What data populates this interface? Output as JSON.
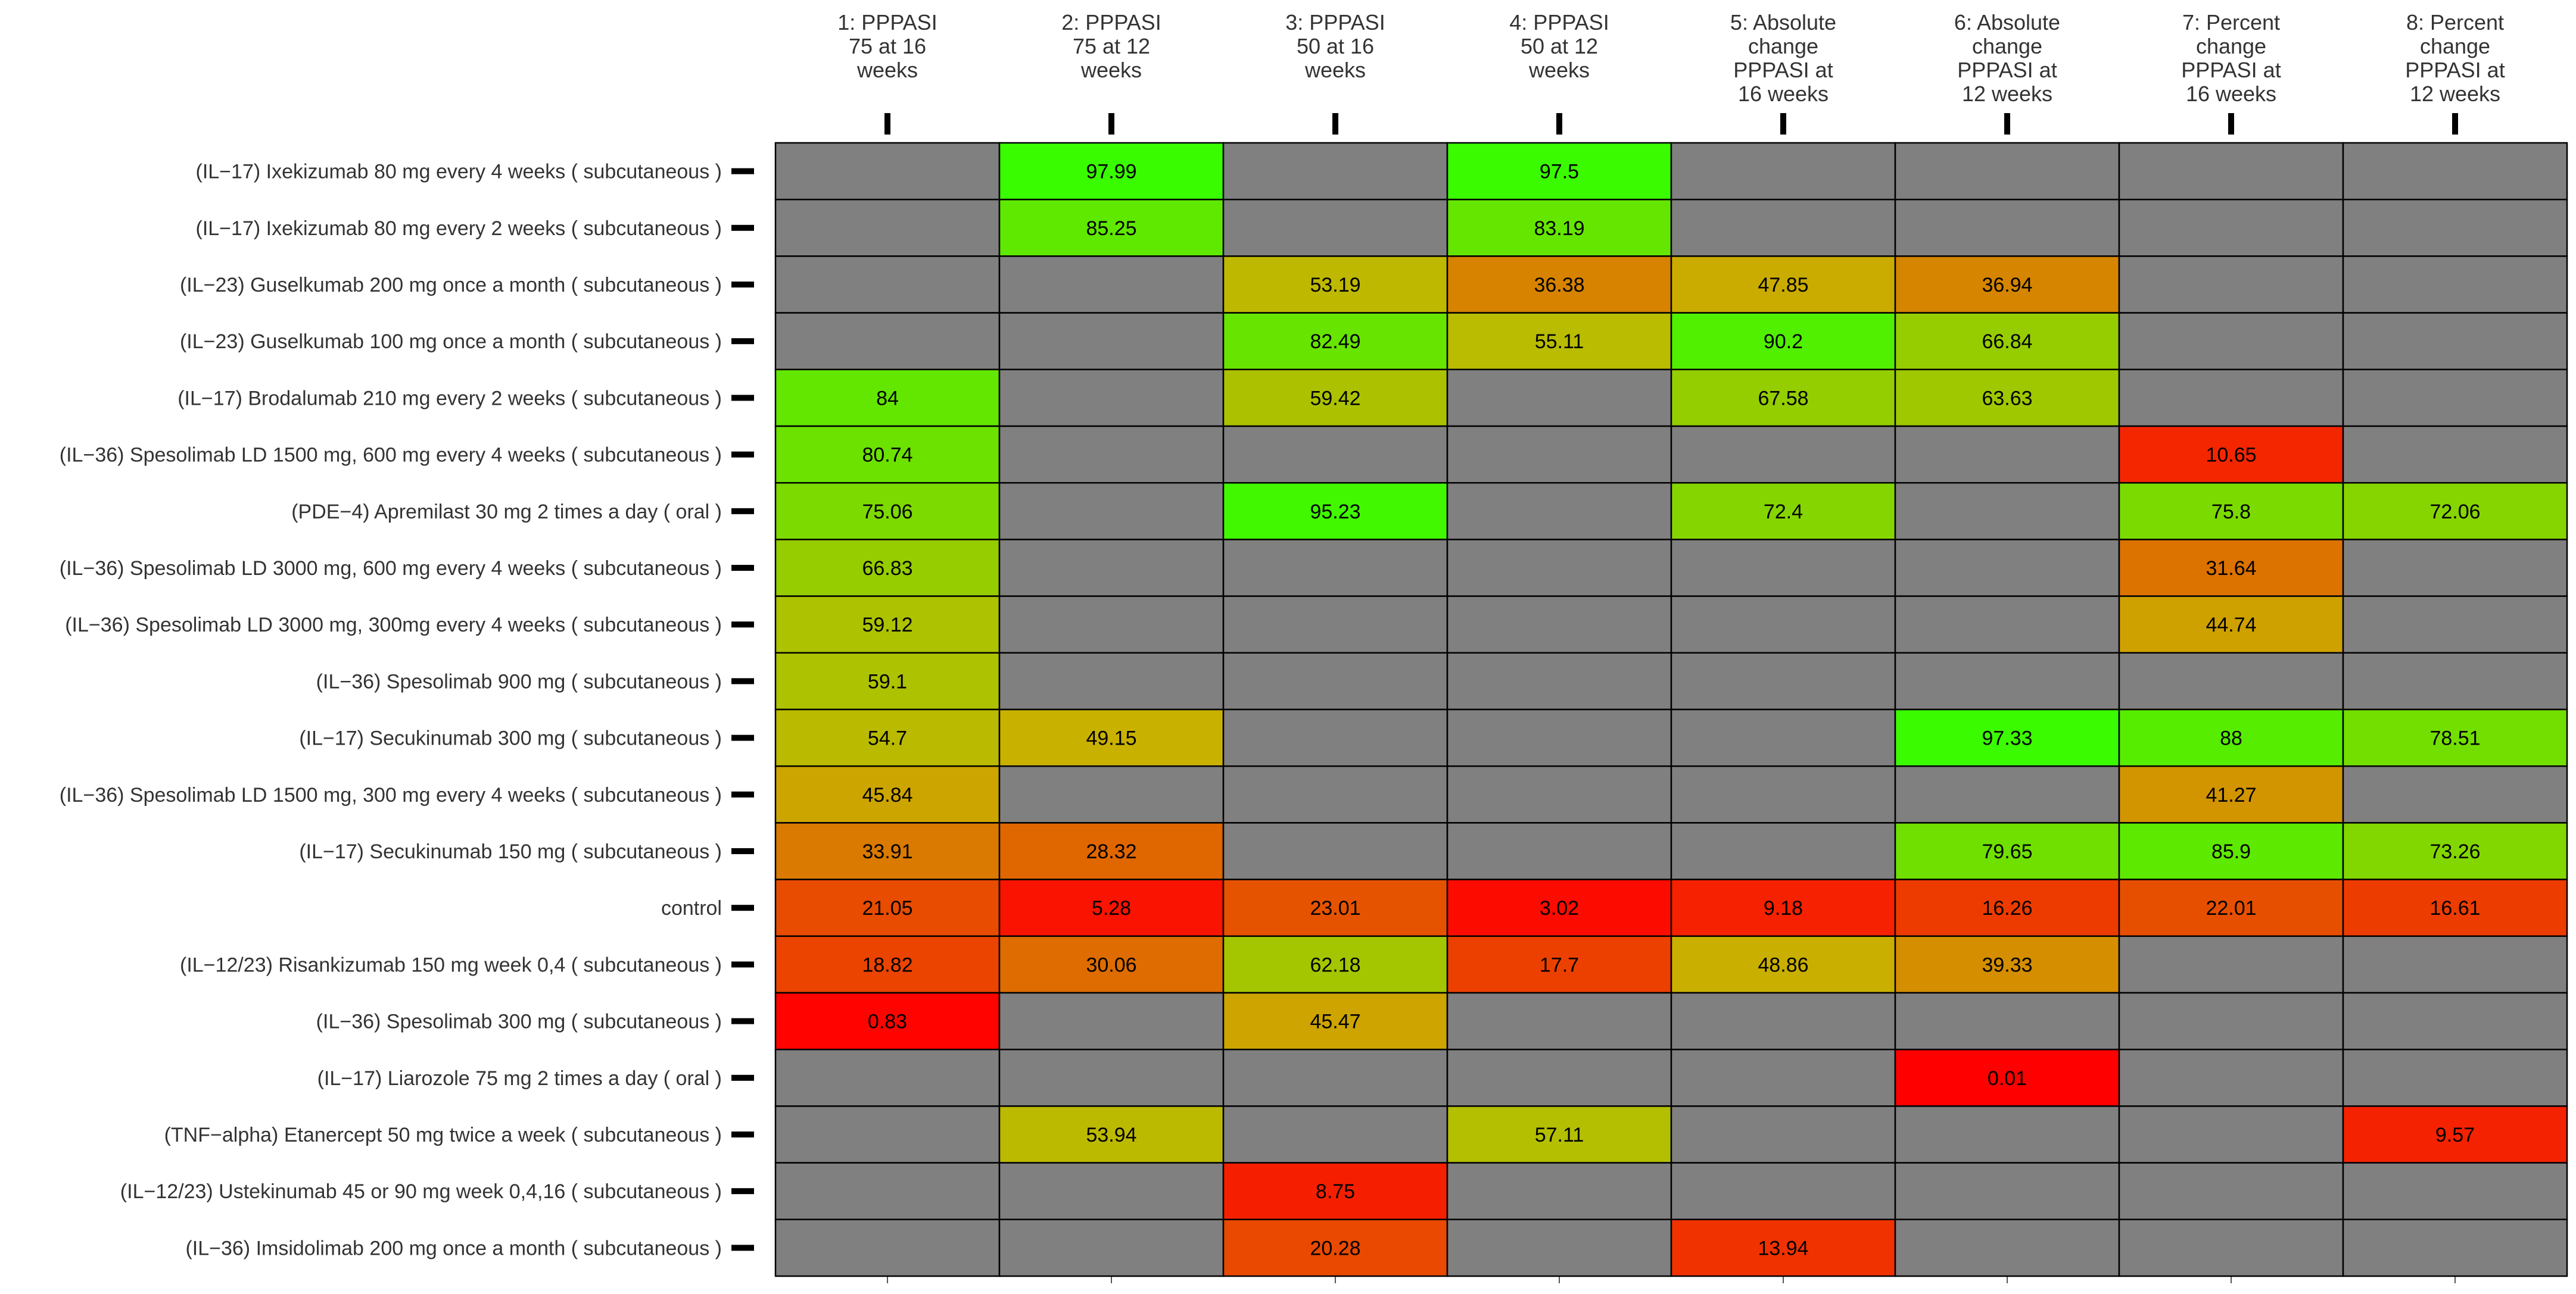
{
  "chart_data": {
    "type": "heatmap",
    "title": "",
    "xlabel": "",
    "ylabel": "",
    "columns": [
      [
        "1: PPPASI",
        "75 at 16",
        "weeks"
      ],
      [
        "2: PPPASI",
        "75 at 12",
        "weeks"
      ],
      [
        "3: PPPASI",
        "50 at 16",
        "weeks"
      ],
      [
        "4: PPPASI",
        "50 at 12",
        "weeks"
      ],
      [
        "5: Absolute",
        "change",
        "PPPASI at",
        "16 weeks"
      ],
      [
        "6: Absolute",
        "change",
        "PPPASI at",
        "12 weeks"
      ],
      [
        "7: Percent",
        "change",
        "PPPASI at",
        "16 weeks"
      ],
      [
        "8: Percent",
        "change",
        "PPPASI at",
        "12 weeks"
      ]
    ],
    "rows": [
      "(IL−17) Ixekizumab 80 mg every 4 weeks ( subcutaneous )",
      "(IL−17) Ixekizumab 80 mg every 2 weeks ( subcutaneous )",
      "(IL−23) Guselkumab 200 mg once a month ( subcutaneous )",
      "(IL−23) Guselkumab 100 mg once a month ( subcutaneous )",
      "(IL−17) Brodalumab 210 mg every 2 weeks ( subcutaneous )",
      "(IL−36) Spesolimab LD 1500 mg, 600 mg every 4 weeks ( subcutaneous )",
      "(PDE−4) Apremilast 30 mg 2 times a day ( oral )",
      "(IL−36) Spesolimab LD 3000 mg, 600 mg every 4 weeks ( subcutaneous )",
      "(IL−36) Spesolimab LD 3000 mg, 300mg every 4 weeks ( subcutaneous )",
      "(IL−36) Spesolimab 900 mg ( subcutaneous )",
      "(IL−17) Secukinumab 300 mg ( subcutaneous )",
      "(IL−36) Spesolimab LD 1500 mg, 300 mg every 4 weeks ( subcutaneous )",
      "(IL−17) Secukinumab 150 mg ( subcutaneous )",
      "control",
      "(IL−12/23) Risankizumab 150 mg week 0,4 ( subcutaneous )",
      "(IL−36) Spesolimab 300 mg ( subcutaneous )",
      "(IL−17) Liarozole 75 mg 2 times a day ( oral )",
      "(TNF−alpha) Etanercept 50 mg twice a week ( subcutaneous )",
      "(IL−12/23) Ustekinumab 45 or 90 mg week 0,4,16 ( subcutaneous )",
      "(IL−36) Imsidolimab 200 mg once a month ( subcutaneous )"
    ],
    "values": [
      [
        null,
        "97.99",
        null,
        "97.5",
        null,
        null,
        null,
        null
      ],
      [
        null,
        "85.25",
        null,
        "83.19",
        null,
        null,
        null,
        null
      ],
      [
        null,
        null,
        "53.19",
        "36.38",
        "47.85",
        "36.94",
        null,
        null
      ],
      [
        null,
        null,
        "82.49",
        "55.11",
        "90.2",
        "66.84",
        null,
        null
      ],
      [
        "84",
        null,
        "59.42",
        null,
        "67.58",
        "63.63",
        null,
        null
      ],
      [
        "80.74",
        null,
        null,
        null,
        null,
        null,
        "10.65",
        null
      ],
      [
        "75.06",
        null,
        "95.23",
        null,
        "72.4",
        null,
        "75.8",
        "72.06"
      ],
      [
        "66.83",
        null,
        null,
        null,
        null,
        null,
        "31.64",
        null
      ],
      [
        "59.12",
        null,
        null,
        null,
        null,
        null,
        "44.74",
        null
      ],
      [
        "59.1",
        null,
        null,
        null,
        null,
        null,
        null,
        null
      ],
      [
        "54.7",
        "49.15",
        null,
        null,
        null,
        "97.33",
        "88",
        "78.51"
      ],
      [
        "45.84",
        null,
        null,
        null,
        null,
        null,
        "41.27",
        null
      ],
      [
        "33.91",
        "28.32",
        null,
        null,
        null,
        "79.65",
        "85.9",
        "73.26"
      ],
      [
        "21.05",
        "5.28",
        "23.01",
        "3.02",
        "9.18",
        "16.26",
        "22.01",
        "16.61"
      ],
      [
        "18.82",
        "30.06",
        "62.18",
        "17.7",
        "48.86",
        "39.33",
        null,
        null
      ],
      [
        "0.83",
        null,
        "45.47",
        null,
        null,
        null,
        null,
        null
      ],
      [
        null,
        null,
        null,
        null,
        null,
        "0.01",
        null,
        null
      ],
      [
        null,
        "53.94",
        null,
        "57.11",
        null,
        null,
        null,
        "9.57"
      ],
      [
        null,
        null,
        "8.75",
        null,
        null,
        null,
        null,
        null
      ],
      [
        null,
        null,
        "20.28",
        null,
        "13.94",
        null,
        null,
        null
      ]
    ],
    "color_scale": {
      "low": "#ff0000",
      "mid": "#c8b400",
      "high": "#33ff00",
      "missing": "#808080"
    }
  }
}
